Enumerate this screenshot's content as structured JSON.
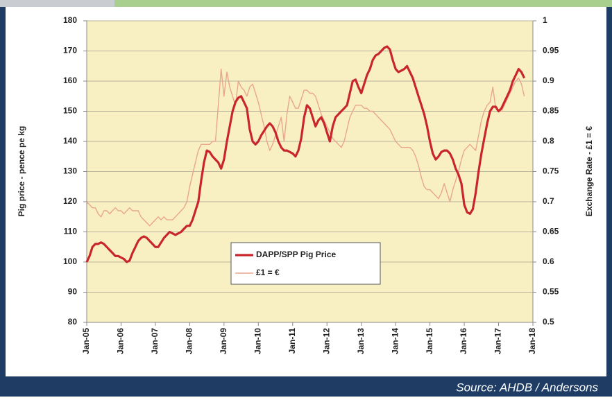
{
  "chart_data": {
    "type": "line",
    "x": [
      "2005-01",
      "2005-02",
      "2005-03",
      "2005-04",
      "2005-05",
      "2005-06",
      "2005-07",
      "2005-08",
      "2005-09",
      "2005-10",
      "2005-11",
      "2005-12",
      "2006-01",
      "2006-02",
      "2006-03",
      "2006-04",
      "2006-05",
      "2006-06",
      "2006-07",
      "2006-08",
      "2006-09",
      "2006-10",
      "2006-11",
      "2006-12",
      "2007-01",
      "2007-02",
      "2007-03",
      "2007-04",
      "2007-05",
      "2007-06",
      "2007-07",
      "2007-08",
      "2007-09",
      "2007-10",
      "2007-11",
      "2007-12",
      "2008-01",
      "2008-02",
      "2008-03",
      "2008-04",
      "2008-05",
      "2008-06",
      "2008-07",
      "2008-08",
      "2008-09",
      "2008-10",
      "2008-11",
      "2008-12",
      "2009-01",
      "2009-02",
      "2009-03",
      "2009-04",
      "2009-05",
      "2009-06",
      "2009-07",
      "2009-08",
      "2009-09",
      "2009-10",
      "2009-11",
      "2009-12",
      "2010-01",
      "2010-02",
      "2010-03",
      "2010-04",
      "2010-05",
      "2010-06",
      "2010-07",
      "2010-08",
      "2010-09",
      "2010-10",
      "2010-11",
      "2010-12",
      "2011-01",
      "2011-02",
      "2011-03",
      "2011-04",
      "2011-05",
      "2011-06",
      "2011-07",
      "2011-08",
      "2011-09",
      "2011-10",
      "2011-11",
      "2011-12",
      "2012-01",
      "2012-02",
      "2012-03",
      "2012-04",
      "2012-05",
      "2012-06",
      "2012-07",
      "2012-08",
      "2012-09",
      "2012-10",
      "2012-11",
      "2012-12",
      "2013-01",
      "2013-02",
      "2013-03",
      "2013-04",
      "2013-05",
      "2013-06",
      "2013-07",
      "2013-08",
      "2013-09",
      "2013-10",
      "2013-11",
      "2013-12",
      "2014-01",
      "2014-02",
      "2014-03",
      "2014-04",
      "2014-05",
      "2014-06",
      "2014-07",
      "2014-08",
      "2014-09",
      "2014-10",
      "2014-11",
      "2014-12",
      "2015-01",
      "2015-02",
      "2015-03",
      "2015-04",
      "2015-05",
      "2015-06",
      "2015-07",
      "2015-08",
      "2015-09",
      "2015-10",
      "2015-11",
      "2015-12",
      "2016-01",
      "2016-02",
      "2016-03",
      "2016-04",
      "2016-05",
      "2016-06",
      "2016-07",
      "2016-08",
      "2016-09",
      "2016-10",
      "2016-11",
      "2016-12",
      "2017-01",
      "2017-02",
      "2017-03",
      "2017-04",
      "2017-05",
      "2017-06",
      "2017-07",
      "2017-08",
      "2017-09",
      "2017-10"
    ],
    "series": [
      {
        "name": "DAPP/SPP Pig Price",
        "color": "#c8262c",
        "axis": "y",
        "values": [
          100,
          102,
          105,
          106,
          106,
          106.5,
          106,
          105,
          104,
          103,
          102,
          102,
          101.5,
          101,
          100,
          100.5,
          103,
          105,
          107,
          108,
          108.5,
          108,
          107,
          106,
          105,
          105,
          106.5,
          108,
          109,
          110,
          109.5,
          109,
          109.5,
          110,
          111,
          112,
          112,
          114,
          117,
          120,
          127,
          133,
          137,
          136.5,
          135,
          134,
          133,
          131,
          134,
          140,
          145,
          150,
          153,
          154.5,
          155,
          153,
          151,
          144,
          140,
          139,
          140,
          142,
          143.5,
          145,
          146,
          145,
          143,
          140,
          138,
          137,
          137,
          136.5,
          136,
          135,
          137,
          141,
          148,
          152,
          151,
          148,
          145,
          147,
          148,
          146,
          143,
          140,
          145,
          148,
          149,
          150,
          151,
          152,
          156,
          160,
          160.5,
          158,
          156,
          159,
          162,
          164,
          167,
          168.5,
          169,
          170,
          171,
          171.5,
          170.5,
          167,
          164,
          163,
          163.5,
          164,
          165,
          163,
          161,
          158,
          155,
          152,
          149,
          145,
          140,
          136,
          134,
          135,
          136.5,
          137,
          137,
          136,
          134,
          131,
          129,
          126,
          119,
          116.5,
          116,
          117.5,
          123,
          130,
          136,
          141,
          146,
          150,
          151.5,
          151.5,
          150,
          151,
          153,
          155,
          157,
          160,
          162,
          164,
          163,
          161
        ]
      },
      {
        "name": "£1 = €",
        "color": "#e8a58f",
        "axis": "y2",
        "values": [
          0.7,
          0.695,
          0.69,
          0.69,
          0.68,
          0.675,
          0.685,
          0.685,
          0.68,
          0.685,
          0.69,
          0.685,
          0.685,
          0.68,
          0.685,
          0.69,
          0.685,
          0.685,
          0.685,
          0.675,
          0.67,
          0.665,
          0.66,
          0.665,
          0.67,
          0.675,
          0.67,
          0.675,
          0.67,
          0.67,
          0.67,
          0.675,
          0.68,
          0.685,
          0.69,
          0.7,
          0.725,
          0.745,
          0.765,
          0.785,
          0.795,
          0.795,
          0.795,
          0.795,
          0.8,
          0.8,
          0.86,
          0.92,
          0.875,
          0.915,
          0.89,
          0.875,
          0.86,
          0.9,
          0.89,
          0.885,
          0.875,
          0.89,
          0.895,
          0.88,
          0.865,
          0.845,
          0.825,
          0.8,
          0.785,
          0.795,
          0.81,
          0.825,
          0.84,
          0.8,
          0.845,
          0.875,
          0.865,
          0.855,
          0.855,
          0.87,
          0.885,
          0.885,
          0.88,
          0.88,
          0.875,
          0.86,
          0.845,
          0.835,
          0.825,
          0.815,
          0.805,
          0.8,
          0.795,
          0.79,
          0.8,
          0.82,
          0.84,
          0.85,
          0.86,
          0.86,
          0.86,
          0.855,
          0.855,
          0.85,
          0.85,
          0.845,
          0.84,
          0.835,
          0.83,
          0.825,
          0.82,
          0.81,
          0.8,
          0.795,
          0.79,
          0.79,
          0.79,
          0.79,
          0.785,
          0.775,
          0.76,
          0.74,
          0.725,
          0.72,
          0.72,
          0.715,
          0.71,
          0.705,
          0.715,
          0.73,
          0.715,
          0.7,
          0.72,
          0.735,
          0.75,
          0.77,
          0.785,
          0.79,
          0.795,
          0.79,
          0.785,
          0.81,
          0.835,
          0.85,
          0.86,
          0.865,
          0.89,
          0.855,
          0.85,
          0.85,
          0.86,
          0.87,
          0.88,
          0.89,
          0.9,
          0.905,
          0.895,
          0.875
        ]
      }
    ],
    "xlim": [
      "2005-01",
      "2018-01"
    ],
    "xticks": [
      {
        "value": "2005-01",
        "label": "Jan-05"
      },
      {
        "value": "2006-01",
        "label": "Jan-06"
      },
      {
        "value": "2007-01",
        "label": "Jan-07"
      },
      {
        "value": "2008-01",
        "label": "Jan-08"
      },
      {
        "value": "2009-01",
        "label": "Jan-09"
      },
      {
        "value": "2010-01",
        "label": "Jan-10"
      },
      {
        "value": "2011-01",
        "label": "Jan-11"
      },
      {
        "value": "2012-01",
        "label": "Jan-12"
      },
      {
        "value": "2013-01",
        "label": "Jan-13"
      },
      {
        "value": "2014-01",
        "label": "Jan-14"
      },
      {
        "value": "2015-01",
        "label": "Jan-15"
      },
      {
        "value": "2016-01",
        "label": "Jan-16"
      },
      {
        "value": "2017-01",
        "label": "Jan-17"
      },
      {
        "value": "2018-01",
        "label": "Jan-18"
      }
    ],
    "ylim": [
      80,
      180
    ],
    "yticks": [
      80,
      90,
      100,
      110,
      120,
      130,
      140,
      150,
      160,
      170,
      180
    ],
    "y2lim": [
      0.5,
      1
    ],
    "y2ticks": [
      0.5,
      0.55,
      0.6,
      0.65,
      0.7,
      0.75,
      0.8,
      0.85,
      0.9,
      0.95,
      1
    ],
    "ylabel": "Pig price - pence pe kg",
    "y2label": "Exchange Rate - £1 = €",
    "grid": true,
    "legend": "center",
    "source": "Source:  AHDB / Andersons"
  }
}
